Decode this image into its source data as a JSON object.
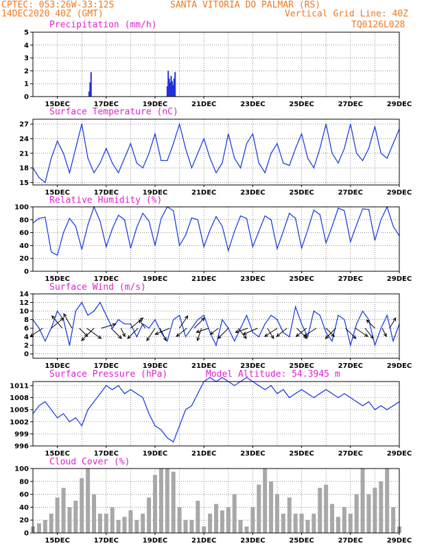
{
  "header": {
    "line1_left": "CPTEC:  053:26W-33:12S",
    "line1_right": "SANTA VITORIA DO PALMAR (RS)",
    "line2_left": "14DEC2020 40Z (GMT)",
    "line2_right": "Vertical Grid Line: 40Z",
    "line3_right": "TQ0126L028"
  },
  "colors": {
    "header": "#f07820",
    "title": "#e020d0",
    "line": "#2040e0",
    "precip": "#2030d8",
    "cloud": "#a8a8a8"
  },
  "x_axis": {
    "day_start": 14.0,
    "day_end": 29.0,
    "tick_days": [
      15,
      17,
      19,
      21,
      23,
      25,
      27,
      29
    ],
    "tick_labels": [
      "15DEC",
      "17DEC",
      "19DEC",
      "21DEC",
      "23DEC",
      "25DEC",
      "27DEC",
      "29DEC"
    ],
    "grid_days": [
      15,
      16,
      17,
      18,
      19,
      20,
      21,
      22,
      23,
      24,
      25,
      26,
      27,
      28,
      29
    ]
  },
  "chart_data": [
    {
      "id": "precip",
      "type": "bar",
      "title": "Precipitation (mm/h)",
      "ylim": [
        0,
        5
      ],
      "yticks": [
        0,
        1,
        2,
        3,
        4,
        5
      ],
      "x": [
        16.3,
        16.34,
        16.38,
        19.5,
        19.54,
        19.58,
        19.62,
        19.66,
        19.7,
        19.74,
        19.78,
        19.82
      ],
      "values": [
        0.4,
        1.1,
        1.9,
        0.8,
        2.0,
        1.4,
        1.1,
        1.6,
        1.2,
        0.9,
        1.4,
        1.9
      ]
    },
    {
      "id": "temp",
      "type": "line",
      "title": "Surface Temperature (nC)",
      "ylim": [
        14.5,
        28
      ],
      "yticks": [
        15,
        18,
        21,
        24,
        27
      ],
      "x": [
        14.0,
        14.25,
        14.5,
        14.75,
        15.0,
        15.25,
        15.5,
        15.75,
        16.0,
        16.25,
        16.5,
        16.75,
        17.0,
        17.25,
        17.5,
        17.75,
        18.0,
        18.25,
        18.5,
        18.75,
        19.0,
        19.25,
        19.5,
        19.75,
        20.0,
        20.25,
        20.5,
        20.75,
        21.0,
        21.25,
        21.5,
        21.75,
        22.0,
        22.25,
        22.5,
        22.75,
        23.0,
        23.25,
        23.5,
        23.75,
        24.0,
        24.25,
        24.5,
        24.75,
        25.0,
        25.25,
        25.5,
        25.75,
        26.0,
        26.25,
        26.5,
        26.75,
        27.0,
        27.25,
        27.5,
        27.75,
        28.0,
        28.25,
        28.5,
        28.75,
        29.0
      ],
      "values": [
        18,
        16,
        15,
        20,
        23.5,
        21,
        17,
        22,
        27,
        20,
        17,
        19,
        22,
        19,
        17,
        20,
        23,
        19,
        18,
        21,
        25,
        19.5,
        19.5,
        23,
        27,
        22,
        18,
        21,
        24,
        20,
        17,
        19,
        25,
        20,
        18,
        23,
        25,
        19,
        17,
        21,
        23,
        19,
        18.5,
        22,
        25,
        20,
        18,
        22,
        27,
        21,
        19,
        22,
        27,
        21,
        19.5,
        22,
        26.5,
        21,
        20,
        23,
        26
      ]
    },
    {
      "id": "rh",
      "type": "line",
      "title": "Relative Humidity (%)",
      "ylim": [
        0,
        100
      ],
      "yticks": [
        0,
        20,
        40,
        60,
        80,
        100
      ],
      "x": [
        14.0,
        14.25,
        14.5,
        14.75,
        15.0,
        15.25,
        15.5,
        15.75,
        16.0,
        16.25,
        16.5,
        16.75,
        17.0,
        17.25,
        17.5,
        17.75,
        18.0,
        18.25,
        18.5,
        18.75,
        19.0,
        19.25,
        19.5,
        19.75,
        20.0,
        20.25,
        20.5,
        20.75,
        21.0,
        21.25,
        21.5,
        21.75,
        22.0,
        22.25,
        22.5,
        22.75,
        23.0,
        23.25,
        23.5,
        23.75,
        24.0,
        24.25,
        24.5,
        24.75,
        25.0,
        25.25,
        25.5,
        25.75,
        26.0,
        26.25,
        26.5,
        26.75,
        27.0,
        27.25,
        27.5,
        27.75,
        28.0,
        28.25,
        28.5,
        28.75,
        29.0
      ],
      "values": [
        75,
        82,
        84,
        30,
        25,
        60,
        82,
        70,
        34,
        72,
        100,
        78,
        38,
        66,
        87,
        80,
        36,
        68,
        90,
        78,
        40,
        82,
        100,
        94,
        40,
        56,
        83,
        80,
        38,
        64,
        85,
        70,
        32,
        62,
        86,
        82,
        38,
        62,
        86,
        80,
        35,
        62,
        90,
        82,
        36,
        64,
        95,
        88,
        44,
        70,
        98,
        94,
        46,
        72,
        97,
        96,
        48,
        80,
        100,
        70,
        55
      ]
    },
    {
      "id": "wind",
      "type": "line",
      "title": "Surface Wind (m/s)",
      "ylim": [
        -1,
        14
      ],
      "yticks": [
        0,
        2,
        4,
        6,
        8,
        10,
        12,
        14
      ],
      "x": [
        14.0,
        14.25,
        14.5,
        14.75,
        15.0,
        15.25,
        15.5,
        15.75,
        16.0,
        16.25,
        16.5,
        16.75,
        17.0,
        17.25,
        17.5,
        17.75,
        18.0,
        18.25,
        18.5,
        18.75,
        19.0,
        19.25,
        19.5,
        19.75,
        20.0,
        20.25,
        20.5,
        20.75,
        21.0,
        21.25,
        21.5,
        21.75,
        22.0,
        22.25,
        22.5,
        22.75,
        23.0,
        23.25,
        23.5,
        23.75,
        24.0,
        24.25,
        24.5,
        24.75,
        25.0,
        25.25,
        25.5,
        25.75,
        26.0,
        26.25,
        26.5,
        26.75,
        27.0,
        27.25,
        27.5,
        27.75,
        28.0,
        28.25,
        28.5,
        28.75,
        29.0
      ],
      "values": [
        8,
        6,
        3,
        6,
        10,
        8,
        2,
        10,
        12,
        9,
        10,
        12,
        9,
        6,
        8,
        7,
        7,
        4,
        7,
        6,
        8,
        5,
        3,
        8,
        9,
        4,
        6,
        8,
        9,
        5,
        2,
        8,
        6,
        3,
        6,
        9,
        5,
        4,
        7,
        9,
        8,
        5,
        4,
        11,
        7,
        4,
        10,
        9,
        5,
        3,
        9,
        8,
        2,
        7,
        10,
        8,
        2,
        6,
        9,
        3,
        7
      ],
      "arrows": {
        "x": [
          14.4,
          14.75,
          15.2,
          15.6,
          15.9,
          16.2,
          16.5,
          16.8,
          17.2,
          17.6,
          18.0,
          18.3,
          18.6,
          19.0,
          19.2,
          19.6,
          20.0,
          20.3,
          20.6,
          20.9,
          21.2,
          21.6,
          22.0,
          22.4,
          22.8,
          23.2,
          23.6,
          24.0,
          24.4,
          24.8,
          25.2,
          25.6,
          26.0,
          26.4,
          26.8,
          27.2,
          27.6,
          28.0,
          28.3,
          28.6
        ],
        "u": [
          -6,
          6,
          -5,
          -4,
          4,
          7,
          -6,
          7,
          5,
          2,
          6,
          -5,
          -3,
          -4,
          3,
          -7,
          4,
          -5,
          5,
          -2,
          -6,
          -4,
          -5,
          4,
          -6,
          -7,
          3,
          -6,
          -5,
          5,
          -5,
          -6,
          4,
          -5,
          5,
          6,
          4,
          -4,
          2,
          3
        ],
        "v": [
          -4,
          5,
          6,
          7,
          -4,
          -5,
          -6,
          2,
          -5,
          -4,
          5,
          -5,
          4,
          -6,
          -6,
          -3,
          6,
          -4,
          5,
          -6,
          -2,
          -3,
          -5,
          -5,
          -2,
          -3,
          -5,
          -4,
          -4,
          -5,
          -4,
          -4,
          -4,
          -5,
          -5,
          -4,
          -5,
          4,
          -4,
          5
        ]
      }
    },
    {
      "id": "pressure",
      "type": "line",
      "title": "Surface Pressure (hPa)",
      "annotation": "Model Altitude: 54.3945 m",
      "ylim": [
        996,
        1012
      ],
      "yticks": [
        996,
        999,
        1002,
        1005,
        1008,
        1011
      ],
      "x": [
        14.0,
        14.25,
        14.5,
        14.75,
        15.0,
        15.25,
        15.5,
        15.75,
        16.0,
        16.25,
        16.5,
        16.75,
        17.0,
        17.25,
        17.5,
        17.75,
        18.0,
        18.25,
        18.5,
        18.75,
        19.0,
        19.25,
        19.5,
        19.75,
        20.0,
        20.25,
        20.5,
        20.75,
        21.0,
        21.25,
        21.5,
        21.75,
        22.0,
        22.25,
        22.5,
        22.75,
        23.0,
        23.25,
        23.5,
        23.75,
        24.0,
        24.25,
        24.5,
        24.75,
        25.0,
        25.25,
        25.5,
        25.75,
        26.0,
        26.25,
        26.5,
        26.75,
        27.0,
        27.25,
        27.5,
        27.75,
        28.0,
        28.25,
        28.5,
        28.75,
        29.0
      ],
      "values": [
        1004,
        1006,
        1007,
        1005,
        1003,
        1004,
        1002,
        1003,
        1001,
        1005,
        1007,
        1009,
        1011,
        1010,
        1011,
        1009,
        1010,
        1009,
        1008,
        1004,
        1001,
        1000,
        998,
        997,
        1001,
        1005,
        1006,
        1009,
        1012,
        1013,
        1012,
        1013,
        1012,
        1011,
        1012,
        1013,
        1012,
        1011,
        1010,
        1011,
        1009,
        1010,
        1008,
        1009,
        1010,
        1009,
        1008,
        1009,
        1010,
        1009,
        1008,
        1009,
        1008,
        1007,
        1006,
        1007,
        1005,
        1006,
        1005,
        1006,
        1007
      ]
    },
    {
      "id": "cloud",
      "type": "bar",
      "title": "Cloud Cover (%)",
      "ylim": [
        0,
        100
      ],
      "yticks": [
        0,
        20,
        40,
        60,
        80,
        100
      ],
      "x": [
        14.0,
        14.25,
        14.5,
        14.75,
        15.0,
        15.25,
        15.5,
        15.75,
        16.0,
        16.25,
        16.5,
        16.75,
        17.0,
        17.25,
        17.5,
        17.75,
        18.0,
        18.25,
        18.5,
        18.75,
        19.0,
        19.25,
        19.5,
        19.75,
        20.0,
        20.25,
        20.5,
        20.75,
        21.0,
        21.25,
        21.5,
        21.75,
        22.0,
        22.25,
        22.5,
        22.75,
        23.0,
        23.25,
        23.5,
        23.75,
        24.0,
        24.25,
        24.5,
        24.75,
        25.0,
        25.25,
        25.5,
        25.75,
        26.0,
        26.25,
        26.5,
        26.75,
        27.0,
        27.25,
        27.5,
        27.75,
        28.0,
        28.25,
        28.5,
        28.75,
        29.0
      ],
      "values": [
        10,
        15,
        20,
        30,
        55,
        70,
        40,
        50,
        85,
        100,
        60,
        30,
        30,
        40,
        20,
        25,
        35,
        20,
        30,
        55,
        90,
        100,
        100,
        95,
        40,
        20,
        20,
        50,
        10,
        30,
        45,
        35,
        40,
        60,
        20,
        10,
        40,
        75,
        100,
        80,
        60,
        30,
        55,
        30,
        30,
        20,
        30,
        70,
        75,
        45,
        25,
        40,
        30,
        60,
        100,
        60,
        70,
        80,
        100,
        40,
        10
      ]
    }
  ]
}
